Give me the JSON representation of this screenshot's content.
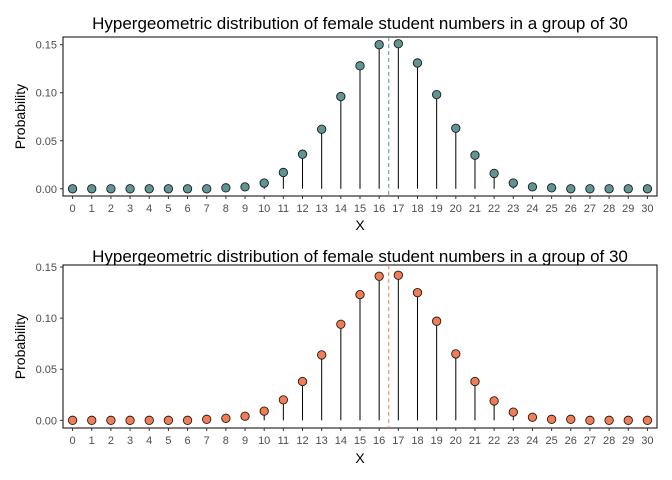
{
  "colors": {
    "panel_border": "#000000",
    "stem": "#000000",
    "tick": "#333333"
  },
  "chart_data": [
    {
      "type": "lollipop",
      "title": "Hypergeometric distribution of female student numbers in a group of 30",
      "xlabel": "X",
      "ylabel": "Probability",
      "xlim": [
        -0.5,
        30.5
      ],
      "ylim": [
        -0.0075,
        0.158
      ],
      "yticks": [
        0.0,
        0.05,
        0.1,
        0.15
      ],
      "ytick_labels": [
        "0.00",
        "0.05",
        "0.10",
        "0.15"
      ],
      "x": [
        0,
        1,
        2,
        3,
        4,
        5,
        6,
        7,
        8,
        9,
        10,
        11,
        12,
        13,
        14,
        15,
        16,
        17,
        18,
        19,
        20,
        21,
        22,
        23,
        24,
        25,
        26,
        27,
        28,
        29,
        30
      ],
      "values": [
        0.0,
        0.0,
        0.0,
        0.0,
        0.0,
        0.0,
        0.0,
        0.0,
        0.001,
        0.002,
        0.006,
        0.017,
        0.036,
        0.062,
        0.096,
        0.128,
        0.15,
        0.151,
        0.131,
        0.098,
        0.063,
        0.035,
        0.016,
        0.006,
        0.002,
        0.001,
        0.0,
        0.0,
        0.0,
        0.0,
        0.0
      ],
      "marker_color": "#5f9595",
      "mean_line": {
        "x": 16.5,
        "color": "#5f9595"
      },
      "grid": false
    },
    {
      "type": "lollipop",
      "title": "Hypergeometric distribution of female student numbers in a group of 30",
      "xlabel": "X",
      "ylabel": "Probability",
      "xlim": [
        -0.5,
        30.5
      ],
      "ylim": [
        -0.0075,
        0.152
      ],
      "yticks": [
        0.0,
        0.05,
        0.1,
        0.15
      ],
      "ytick_labels": [
        "0.00",
        "0.05",
        "0.10",
        "0.15"
      ],
      "x": [
        0,
        1,
        2,
        3,
        4,
        5,
        6,
        7,
        8,
        9,
        10,
        11,
        12,
        13,
        14,
        15,
        16,
        17,
        18,
        19,
        20,
        21,
        22,
        23,
        24,
        25,
        26,
        27,
        28,
        29,
        30
      ],
      "values": [
        0.0,
        0.0,
        0.0,
        0.0,
        0.0,
        0.0,
        0.0,
        0.001,
        0.002,
        0.004,
        0.009,
        0.02,
        0.038,
        0.064,
        0.094,
        0.123,
        0.141,
        0.142,
        0.125,
        0.097,
        0.065,
        0.038,
        0.019,
        0.008,
        0.003,
        0.001,
        0.001,
        0.0,
        0.0,
        0.0,
        0.0
      ],
      "marker_color": "#f47c55",
      "mean_line": {
        "x": 16.5,
        "color": "#f47c55"
      },
      "grid": false
    }
  ]
}
